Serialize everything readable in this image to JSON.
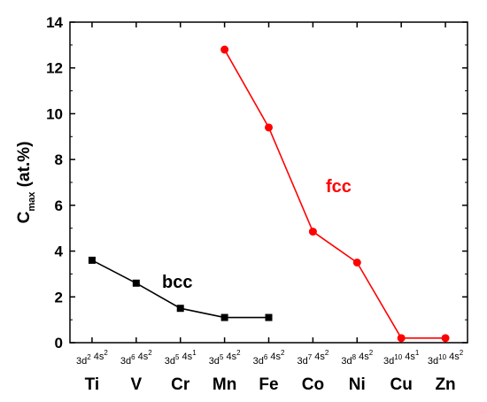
{
  "chart_data": {
    "type": "line",
    "ylabel": {
      "main": "C",
      "sub": "max",
      "suffix": " (at.%)"
    },
    "ylim": [
      0,
      14
    ],
    "yticks": [
      0,
      2,
      4,
      6,
      8,
      10,
      12,
      14
    ],
    "grid": false,
    "categories": [
      {
        "element": "Ti",
        "config": [
          [
            "3d",
            "2"
          ],
          [
            " 4s",
            "2"
          ]
        ]
      },
      {
        "element": "V",
        "config": [
          [
            "3d",
            "6"
          ],
          [
            " 4s",
            "2"
          ]
        ]
      },
      {
        "element": "Cr",
        "config": [
          [
            "3d",
            "5"
          ],
          [
            " 4s",
            "1"
          ]
        ]
      },
      {
        "element": "Mn",
        "config": [
          [
            "3d",
            "5"
          ],
          [
            " 4s",
            "2"
          ]
        ]
      },
      {
        "element": "Fe",
        "config": [
          [
            "3d",
            "6"
          ],
          [
            " 4s",
            "2"
          ]
        ]
      },
      {
        "element": "Co",
        "config": [
          [
            "3d",
            "7"
          ],
          [
            " 4s",
            "2"
          ]
        ]
      },
      {
        "element": "Ni",
        "config": [
          [
            "3d",
            "8"
          ],
          [
            " 4s",
            "2"
          ]
        ]
      },
      {
        "element": "Cu",
        "config": [
          [
            "3d",
            "10"
          ],
          [
            " 4s",
            "1"
          ]
        ]
      },
      {
        "element": "Zn",
        "config": [
          [
            "3d",
            "10"
          ],
          [
            " 4s",
            "2"
          ]
        ]
      }
    ],
    "series": [
      {
        "name": "bcc",
        "color": "#000000",
        "marker": "square",
        "points": [
          {
            "category": "Ti",
            "value": 3.6
          },
          {
            "category": "V",
            "value": 2.6
          },
          {
            "category": "Cr",
            "value": 1.5
          },
          {
            "category": "Mn",
            "value": 1.1
          },
          {
            "category": "Fe",
            "value": 1.1
          }
        ]
      },
      {
        "name": "fcc",
        "color": "#ff0000",
        "marker": "circle",
        "points": [
          {
            "category": "Mn",
            "value": 12.8
          },
          {
            "category": "Fe",
            "value": 9.4
          },
          {
            "category": "Co",
            "value": 4.85
          },
          {
            "category": "Ni",
            "value": 3.5
          },
          {
            "category": "Cu",
            "value": 0.2
          },
          {
            "category": "Zn",
            "value": 0.2
          }
        ]
      }
    ]
  }
}
